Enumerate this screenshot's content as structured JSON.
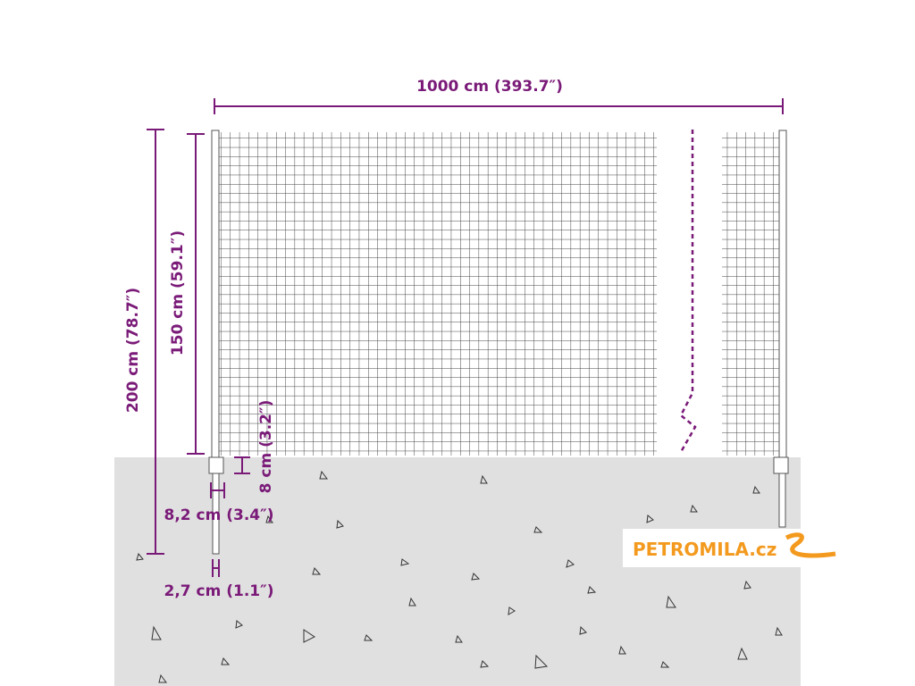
{
  "dimensions": {
    "width": "1000 cm (393.7″)",
    "height_mesh": "150 cm (59.1″)",
    "height_total": "200 cm (78.7″)",
    "mesh_gap": "8 cm (3.2″)",
    "post_plate": "8,2 cm (3.4″)",
    "post_diameter": "2,7 cm (1.1″)"
  },
  "logo": "PETROMILA.cz"
}
